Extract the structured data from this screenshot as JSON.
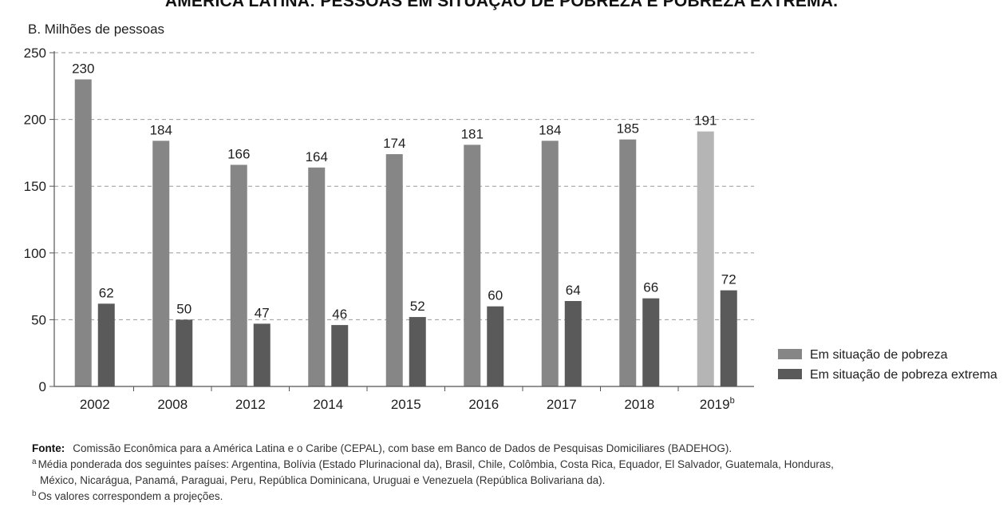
{
  "page_title": "AMÉRICA LATINA: PESSOAS EM SITUAÇÃO DE POBREZA E POBREZA EXTREMA.",
  "colors": {
    "poverty": "#868686",
    "poverty_projection": "#b5b5b5",
    "extreme": "#5a5a5a",
    "axis": "#555555",
    "grid": "#9a9a9a",
    "text": "#1e1e1e"
  },
  "chart_data": {
    "type": "bar",
    "title": "B. Milhões de pessoas",
    "xlabel": "",
    "ylabel": "",
    "ylim": [
      0,
      250
    ],
    "yticks": [
      0,
      50,
      100,
      150,
      200,
      250
    ],
    "grid": "horizontal dashed",
    "legend_position": "right",
    "categories": [
      "2002",
      "2008",
      "2012",
      "2014",
      "2015",
      "2016",
      "2017",
      "2018",
      "2019"
    ],
    "category_superscripts": [
      "",
      "",
      "",
      "",
      "",
      "",
      "",
      "",
      "b"
    ],
    "series": [
      {
        "name": "Em situação de pobreza",
        "values": [
          230,
          184,
          166,
          164,
          174,
          181,
          184,
          185,
          191
        ]
      },
      {
        "name": "Em situação de pobreza extrema",
        "values": [
          62,
          50,
          47,
          46,
          52,
          60,
          64,
          66,
          72
        ]
      }
    ],
    "projection_categories": [
      "2019"
    ]
  },
  "footnotes": {
    "source_label": "Fonte",
    "source_colon": ":",
    "source_text": "Comissão Econômica para a América Latina e o Caribe (CEPAL), com base em Banco de Dados de Pesquisas Domiciliares (BADEHOG).",
    "note_a_marker": "a",
    "note_a_line1": "Média ponderada dos seguintes países: Argentina, Bolívia (Estado Plurinacional da), Brasil, Chile, Colômbia, Costa Rica, Equador, El Salvador, Guatemala, Honduras,",
    "note_a_line2": "México, Nicarágua, Panamá, Paraguai, Peru, República Dominicana, Uruguai e Venezuela (República Bolivariana da).",
    "note_b_marker": "b",
    "note_b_text": "Os valores correspondem a projeções."
  }
}
